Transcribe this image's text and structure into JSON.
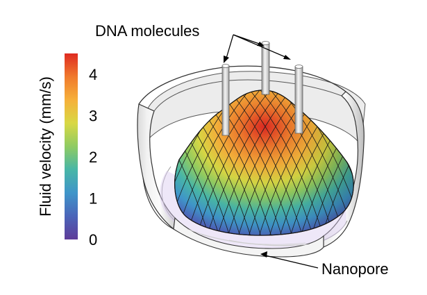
{
  "colorbar": {
    "label": "Fluid velocity (mm/s)",
    "ticks": [
      "0",
      "1",
      "2",
      "3",
      "4"
    ],
    "tick_values": [
      0,
      1,
      2,
      3,
      4
    ],
    "max_value": 4.5,
    "colormap": [
      "#5e3c99",
      "#4b65b9",
      "#3f95c9",
      "#48b6a7",
      "#8fcb62",
      "#d8d844",
      "#f6b03a",
      "#f07a2d",
      "#df2b21"
    ]
  },
  "annotations": {
    "dna": "DNA molecules",
    "nanopore": "Nanopore"
  }
}
